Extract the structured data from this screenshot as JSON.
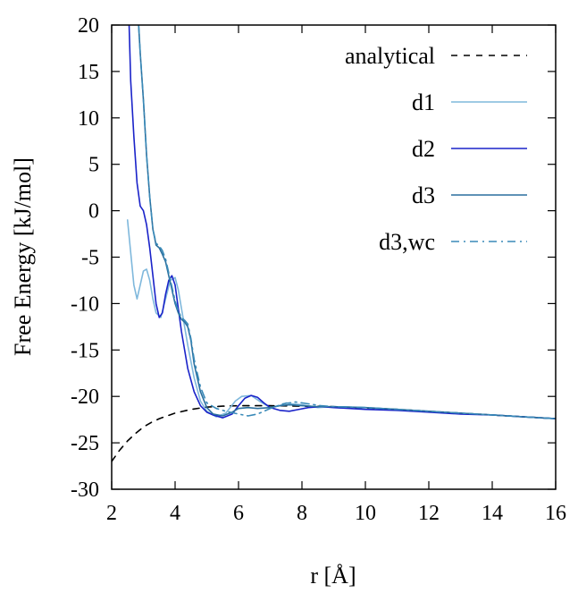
{
  "chart_data": {
    "type": "line",
    "xlabel": "r [Å]",
    "ylabel": "Free Energy [kJ/mol]",
    "xlim": [
      2,
      16
    ],
    "ylim": [
      -30,
      20
    ],
    "xticks": [
      2,
      4,
      6,
      8,
      10,
      12,
      14,
      16
    ],
    "yticks": [
      20,
      15,
      10,
      5,
      0,
      -5,
      -10,
      -15,
      -20,
      -25,
      -30
    ],
    "xtick_labels": [
      "2",
      "4",
      "6",
      "8",
      "10",
      "12",
      "14",
      "16"
    ],
    "ytick_labels": [
      "20",
      "15",
      "10",
      "5",
      "0",
      "-5",
      "-10",
      "-15",
      "-20",
      "-25",
      "-30"
    ],
    "grid": false,
    "legend_position": "top-right",
    "series": [
      {
        "name": "analytical",
        "color": "#000000",
        "dash": "dashed",
        "x": [
          2.0,
          2.25,
          2.5,
          2.75,
          3.0,
          3.25,
          3.5,
          4.0,
          4.5,
          5.0,
          5.5,
          6.0,
          6.5,
          7.0,
          8.0,
          9.0,
          10.0,
          11.0,
          12.0,
          13.0,
          14.0,
          15.0,
          16.0
        ],
        "y": [
          -27.0,
          -25.8,
          -24.8,
          -24.0,
          -23.3,
          -22.8,
          -22.4,
          -21.8,
          -21.4,
          -21.15,
          -21.05,
          -21.0,
          -21.0,
          -21.0,
          -21.05,
          -21.1,
          -21.25,
          -21.4,
          -21.6,
          -21.8,
          -22.0,
          -22.2,
          -22.4
        ]
      },
      {
        "name": "d1",
        "color": "#7fb8dc",
        "dash": "solid",
        "x": [
          2.5,
          2.6,
          2.7,
          2.8,
          2.9,
          3.0,
          3.1,
          3.2,
          3.3,
          3.4,
          3.55,
          3.7,
          3.85,
          4.0,
          4.1,
          4.2,
          4.3,
          4.4,
          4.6,
          4.8,
          5.0,
          5.3,
          5.6,
          5.9,
          6.1,
          6.4,
          6.7,
          7.0,
          7.3,
          7.5,
          7.7,
          8.0,
          8.5,
          9.0,
          10.0,
          11.0,
          12.0,
          13.0,
          14.0,
          15.0,
          16.0
        ],
        "y": [
          -1.0,
          -4.5,
          -8.0,
          -9.5,
          -8.0,
          -6.5,
          -6.3,
          -7.5,
          -9.5,
          -11.0,
          -11.5,
          -9.5,
          -7.5,
          -7.2,
          -8.5,
          -10.5,
          -12.5,
          -14.5,
          -18.0,
          -20.5,
          -21.6,
          -22.2,
          -21.8,
          -20.5,
          -20.0,
          -19.9,
          -20.6,
          -21.2,
          -21.0,
          -20.7,
          -20.8,
          -20.9,
          -21.2,
          -21.1,
          -21.2,
          -21.4,
          -21.6,
          -21.8,
          -22.0,
          -22.2,
          -22.4
        ]
      },
      {
        "name": "d2",
        "color": "#1a23c9",
        "dash": "solid",
        "x": [
          2.55,
          2.6,
          2.7,
          2.8,
          2.9,
          3.0,
          3.1,
          3.2,
          3.3,
          3.4,
          3.5,
          3.6,
          3.7,
          3.8,
          3.9,
          4.0,
          4.1,
          4.2,
          4.3,
          4.4,
          4.6,
          4.8,
          5.0,
          5.2,
          5.5,
          5.8,
          6.0,
          6.2,
          6.4,
          6.6,
          6.8,
          7.0,
          7.3,
          7.6,
          7.9,
          8.2,
          8.6,
          9.0,
          10.0,
          11.0,
          12.0,
          13.0,
          14.0,
          15.0,
          16.0
        ],
        "y": [
          20.0,
          14.0,
          8.0,
          3.0,
          0.5,
          0.0,
          -1.5,
          -4.0,
          -7.0,
          -10.0,
          -11.5,
          -11.0,
          -9.0,
          -7.5,
          -7.0,
          -8.0,
          -10.5,
          -13.0,
          -15.0,
          -17.0,
          -19.5,
          -21.0,
          -21.7,
          -22.0,
          -22.3,
          -21.9,
          -21.0,
          -20.2,
          -19.9,
          -20.1,
          -20.7,
          -21.2,
          -21.5,
          -21.6,
          -21.4,
          -21.2,
          -21.1,
          -21.2,
          -21.4,
          -21.5,
          -21.7,
          -21.9,
          -22.0,
          -22.2,
          -22.4
        ]
      },
      {
        "name": "d3",
        "color": "#2a6f9e",
        "dash": "solid",
        "x": [
          2.85,
          2.9,
          3.0,
          3.1,
          3.2,
          3.3,
          3.4,
          3.5,
          3.6,
          3.7,
          3.8,
          3.9,
          4.0,
          4.1,
          4.2,
          4.3,
          4.4,
          4.5,
          4.6,
          4.8,
          5.0,
          5.2,
          5.5,
          5.8,
          6.0,
          6.3,
          6.6,
          7.0,
          7.3,
          7.6,
          8.0,
          8.5,
          9.0,
          10.0,
          11.0,
          12.0,
          13.0,
          14.0,
          15.0,
          16.0
        ],
        "y": [
          20.0,
          17.0,
          12.0,
          6.0,
          1.5,
          -2.0,
          -3.7,
          -4.0,
          -4.7,
          -5.5,
          -7.0,
          -8.5,
          -10.0,
          -11.0,
          -11.7,
          -12.0,
          -12.5,
          -14.0,
          -16.5,
          -19.5,
          -21.2,
          -21.9,
          -22.1,
          -21.7,
          -21.3,
          -21.2,
          -21.3,
          -21.2,
          -21.0,
          -20.9,
          -21.0,
          -21.1,
          -21.1,
          -21.2,
          -21.4,
          -21.6,
          -21.8,
          -22.0,
          -22.2,
          -22.4
        ]
      },
      {
        "name": "d3,wc",
        "color": "#3a8ab8",
        "dash": "dashdot",
        "x": [
          2.85,
          2.9,
          3.0,
          3.1,
          3.2,
          3.3,
          3.4,
          3.5,
          3.6,
          3.7,
          3.8,
          3.9,
          4.0,
          4.1,
          4.2,
          4.3,
          4.4,
          4.5,
          4.6,
          4.8,
          5.0,
          5.3,
          5.6,
          6.0,
          6.3,
          6.6,
          7.0,
          7.4,
          7.8,
          8.2,
          8.6,
          9.0,
          10.0,
          11.0,
          12.0,
          13.0,
          14.0,
          15.0,
          16.0
        ],
        "y": [
          20.0,
          17.0,
          12.0,
          6.0,
          1.5,
          -2.0,
          -3.5,
          -3.8,
          -4.3,
          -5.2,
          -6.7,
          -8.2,
          -9.7,
          -10.8,
          -11.5,
          -11.8,
          -12.2,
          -13.8,
          -16.0,
          -19.0,
          -20.7,
          -21.3,
          -21.6,
          -21.9,
          -22.1,
          -21.9,
          -21.3,
          -20.8,
          -20.6,
          -20.8,
          -21.0,
          -21.1,
          -21.2,
          -21.4,
          -21.6,
          -21.8,
          -22.0,
          -22.2,
          -22.4
        ]
      }
    ]
  }
}
